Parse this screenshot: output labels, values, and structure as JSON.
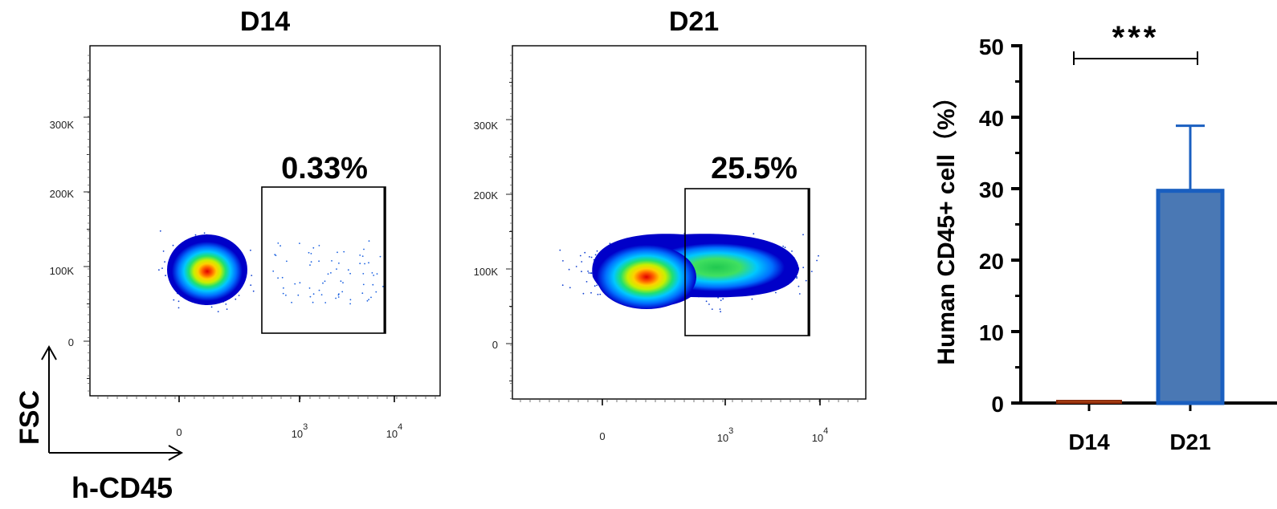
{
  "axes_key": {
    "y_label": "FSC",
    "x_label": "h-CD45"
  },
  "chart_data": [
    {
      "type": "scatter",
      "title": "D14",
      "xlabel": "",
      "ylabel": "",
      "x_ticks": [
        "0",
        "10",
        "10"
      ],
      "x_tick_exponents": [
        "",
        "3",
        "4"
      ],
      "y_ticks": [
        "0",
        "100K",
        "200K",
        "300K"
      ],
      "y_tick_values": [
        0,
        100000,
        200000,
        300000
      ],
      "ylim": [
        -80000,
        400000
      ],
      "gate_label": "0.33%",
      "gate_percent": 0.33,
      "density_colormap": [
        "#0000c8",
        "#0070ff",
        "#00c8ff",
        "#20e070",
        "#c8f000",
        "#ffd000",
        "#ff6000",
        "#e00000"
      ]
    },
    {
      "type": "scatter",
      "title": "D21",
      "xlabel": "",
      "ylabel": "",
      "x_ticks": [
        "0",
        "10",
        "10"
      ],
      "x_tick_exponents": [
        "",
        "3",
        "4"
      ],
      "y_ticks": [
        "0",
        "100K",
        "200K",
        "300K"
      ],
      "y_tick_values": [
        0,
        100000,
        200000,
        300000
      ],
      "ylim": [
        -80000,
        400000
      ],
      "gate_label": "25.5%",
      "gate_percent": 25.5,
      "density_colormap": [
        "#0000c8",
        "#0070ff",
        "#00c8ff",
        "#20e070",
        "#c8f000",
        "#ffd000",
        "#ff6000",
        "#e00000"
      ]
    },
    {
      "type": "bar",
      "categories": [
        "D14",
        "D21"
      ],
      "values": [
        0.33,
        29.7
      ],
      "error_plus": [
        0.0,
        9.1
      ],
      "ylabel": "Human CD45+ cell（%）",
      "xlabel": "",
      "ylim": [
        0,
        50
      ],
      "y_ticks": [
        "0",
        "10",
        "20",
        "30",
        "40",
        "50"
      ],
      "significance": "***",
      "bar_colors": [
        "#b84a1a",
        "#4a78b4"
      ],
      "bar_edge_colors": [
        "#8a2a08",
        "#1a5fc0"
      ]
    }
  ]
}
